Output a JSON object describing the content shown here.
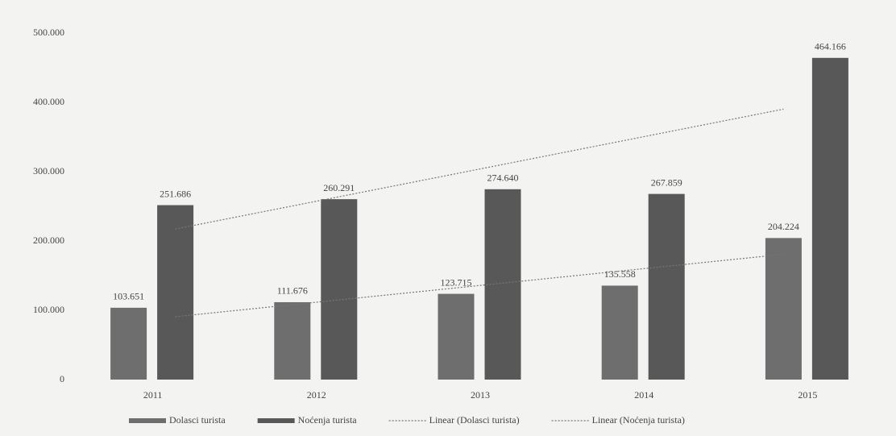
{
  "chart_data": {
    "type": "bar",
    "categories": [
      "2011",
      "2012",
      "2013",
      "2014",
      "2015"
    ],
    "series": [
      {
        "name": "Dolasci turista",
        "color": "#6e6e6e",
        "values": [
          103651,
          111676,
          123715,
          135558,
          204224
        ],
        "value_labels": [
          "103.651",
          "111.676",
          "123.715",
          "135.558",
          "204.224"
        ],
        "trendline": {
          "type": "linear",
          "name": "Linear (Dolasci turista)"
        }
      },
      {
        "name": "Noćenja turista",
        "color": "#585858",
        "values": [
          251686,
          260291,
          274640,
          267859,
          464166
        ],
        "value_labels": [
          "251.686",
          "260.291",
          "274.640",
          "267.859",
          "464.166"
        ],
        "trendline": {
          "type": "linear",
          "name": "Linear (Noćenja turista)"
        }
      }
    ],
    "ylim": [
      0,
      500000
    ],
    "yticks": [
      0,
      {
        "value": 100000,
        "label": "100.000"
      },
      {
        "value": 200000,
        "label": "200.000"
      },
      {
        "value": 300000,
        "label": "300.000"
      },
      {
        "value": 400000,
        "label": "400.000"
      },
      {
        "value": 500000,
        "label": "500.000"
      }
    ],
    "grid": false,
    "legend": "bottom"
  }
}
